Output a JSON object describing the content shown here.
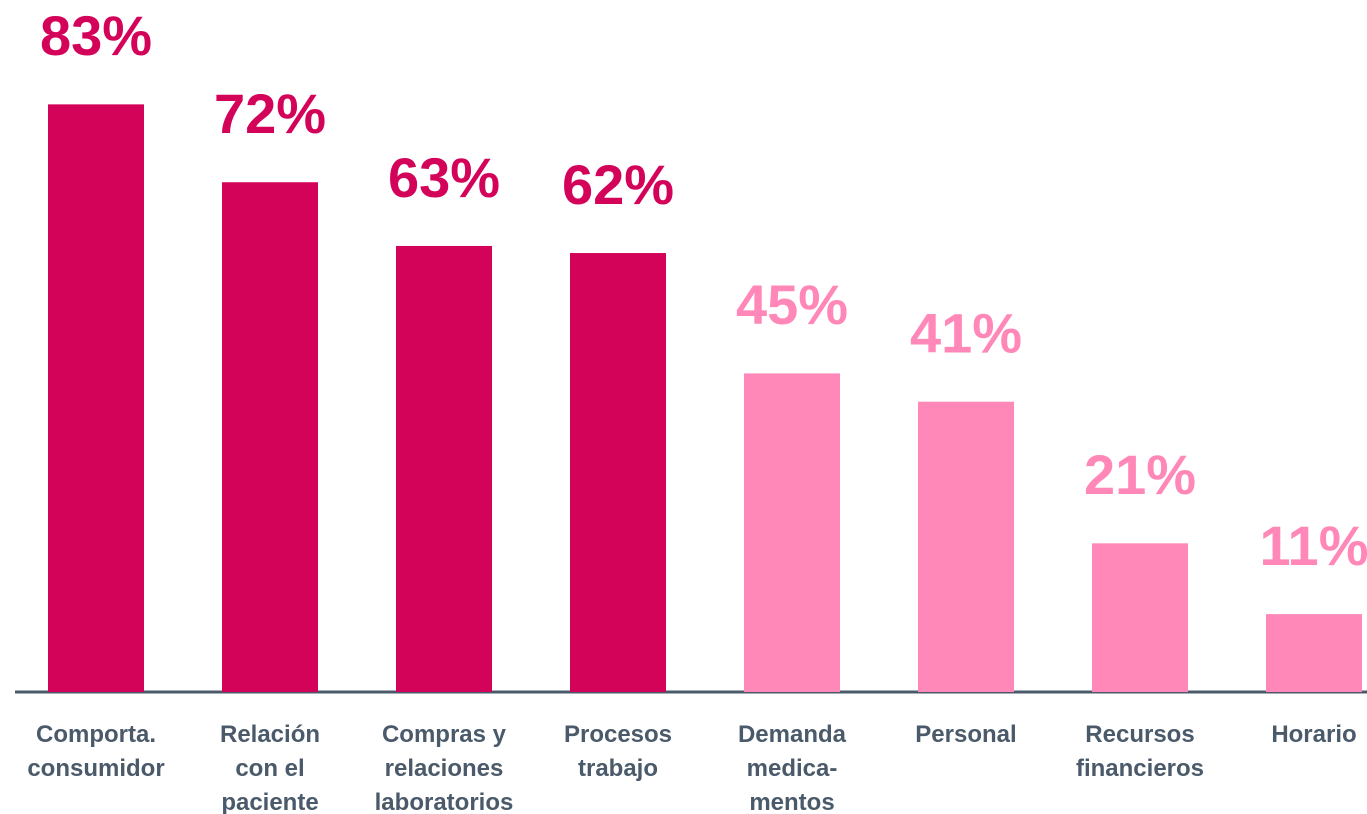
{
  "chart_data": {
    "type": "bar",
    "categories": [
      "Comporta.\nconsumidor",
      "Relación\ncon el\npaciente",
      "Compras y\nrelaciones\nlaboratorios",
      "Procesos\ntrabajo",
      "Demanda\nmedica-\nmentos",
      "Personal",
      "Recursos\nfinancieros",
      "Horario"
    ],
    "values": [
      83,
      72,
      63,
      62,
      45,
      41,
      21,
      11
    ],
    "value_labels": [
      "83%",
      "72%",
      "63%",
      "62%",
      "45%",
      "41%",
      "21%",
      "11%"
    ],
    "colors": [
      "#d4035a",
      "#d4035a",
      "#d4035a",
      "#d4035a",
      "#ff88b8",
      "#ff88b8",
      "#ff88b8",
      "#ff88b8"
    ]
  }
}
